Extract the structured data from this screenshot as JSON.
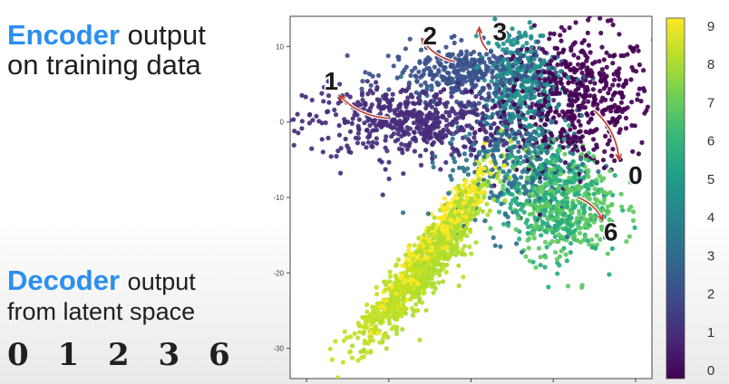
{
  "encoder": {
    "highlight": "Encoder",
    "rest": "output",
    "line2": "on training data"
  },
  "decoder": {
    "highlight": "Decoder",
    "rest": "output",
    "line2": "from latent space",
    "digits": "0 1 2 3 6"
  },
  "chart_data": {
    "type": "scatter",
    "y_ticks": [
      "10",
      "0",
      "-10",
      "-20",
      "-30"
    ],
    "y_tick_values": [
      10,
      0,
      -10,
      -20,
      -30
    ],
    "ylim": [
      -34,
      14
    ],
    "xlim": [
      -22,
      22
    ],
    "colorbar": {
      "labels": [
        "0",
        "1",
        "2",
        "3",
        "4",
        "5",
        "6",
        "7",
        "8",
        "9"
      ],
      "colormap": "viridis",
      "range": [
        0,
        9
      ]
    },
    "annotations": [
      {
        "label": "1",
        "x": -17,
        "y": 5.5
      },
      {
        "label": "2",
        "x": -5,
        "y": 11.5
      },
      {
        "label": "3",
        "x": 3.5,
        "y": 12
      },
      {
        "label": "0",
        "x": 20,
        "y": -7
      },
      {
        "label": "6",
        "x": 17,
        "y": -14.5
      }
    ],
    "clusters": [
      {
        "digit": 0,
        "color": "#440154",
        "cx": 13,
        "cy": 3,
        "sx": 4.5,
        "sy": 4.5,
        "n": 520
      },
      {
        "digit": 1,
        "color": "#472d7b",
        "cx": -7,
        "cy": 0,
        "sx": 6.5,
        "sy": 2.4,
        "n": 560
      },
      {
        "digit": 2,
        "color": "#3b528b",
        "cx": 0,
        "cy": 6.5,
        "sx": 5,
        "sy": 1.8,
        "n": 380
      },
      {
        "digit": 3,
        "color": "#2c728e",
        "cx": 5,
        "cy": -4.5,
        "sx": 4,
        "sy": 5,
        "n": 360
      },
      {
        "digit": 4,
        "color": "#21918c",
        "cx": 6,
        "cy": 6,
        "sx": 2.2,
        "sy": 3.5,
        "n": 260
      },
      {
        "digit": 5,
        "color": "#28ae80",
        "cx": 10,
        "cy": -10,
        "sx": 3,
        "sy": 4,
        "n": 340
      },
      {
        "digit": 6,
        "color": "#5ec962",
        "cx": 11.5,
        "cy": -11,
        "sx": 3.2,
        "sy": 3.5,
        "n": 320
      },
      {
        "digit": 7,
        "color": "#addc30",
        "cx": -4,
        "cy": -17,
        "sx": 2.2,
        "sy": 5.5,
        "n": 520
      },
      {
        "digit": 8,
        "color": "#c2df23",
        "cx": -8,
        "cy": -22,
        "sx": 2.2,
        "sy": 4.5,
        "n": 420
      },
      {
        "digit": 9,
        "color": "#fde725",
        "cx": -4,
        "cy": -15,
        "sx": 1.8,
        "sy": 5,
        "n": 360
      }
    ]
  }
}
